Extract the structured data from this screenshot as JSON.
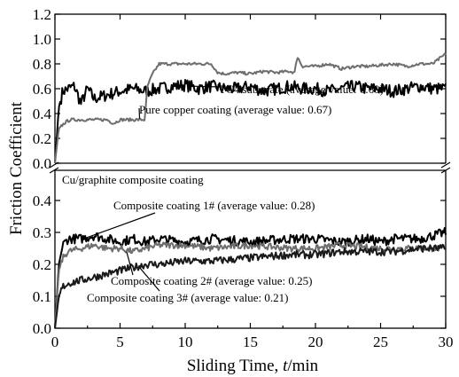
{
  "chart_data": {
    "type": "line",
    "xlabel": "Sliding Time, t/min",
    "xlabel_parts": {
      "prefix": "Sliding Time, ",
      "var": "t",
      "suffix": "/min"
    },
    "ylabel": "Friction Coefficient",
    "xlim": [
      0,
      30
    ],
    "x_ticks": [
      "0",
      "5",
      "10",
      "15",
      "20",
      "25",
      "30"
    ],
    "grid": false,
    "legend": "none",
    "panels": [
      {
        "name": "upper",
        "ylim": [
          0.0,
          1.2
        ],
        "y_ticks": [
          "0.0",
          "0.2",
          "0.4",
          "0.6",
          "0.8",
          "1.0",
          "1.2"
        ],
        "series": [
          {
            "name": "TC4 substrate (average value: 0.60)",
            "color": "#000000",
            "x": [
              0,
              0.3,
              0.6,
              1,
              1.5,
              2,
              2.5,
              3,
              4,
              5,
              6,
              7,
              8,
              9,
              10,
              11,
              12,
              13,
              14,
              15,
              16,
              17,
              18,
              19,
              20,
              21,
              22,
              23,
              24,
              25,
              26,
              27,
              28,
              29,
              30
            ],
            "y": [
              0.0,
              0.45,
              0.58,
              0.6,
              0.62,
              0.48,
              0.6,
              0.52,
              0.55,
              0.58,
              0.6,
              0.58,
              0.6,
              0.62,
              0.63,
              0.6,
              0.62,
              0.6,
              0.6,
              0.62,
              0.58,
              0.6,
              0.62,
              0.6,
              0.6,
              0.58,
              0.6,
              0.62,
              0.6,
              0.6,
              0.58,
              0.6,
              0.62,
              0.6,
              0.6
            ],
            "noise": 0.05
          },
          {
            "name": "Pure copper coating (average value: 0.67)",
            "color": "#6e6e6e",
            "x": [
              0,
              0.3,
              0.8,
              1.2,
              2,
              3,
              4,
              4.5,
              5,
              5.5,
              6,
              6.9,
              7.1,
              7.5,
              8,
              9,
              10,
              11,
              12,
              12.5,
              13,
              14,
              15,
              16,
              17,
              18,
              18.4,
              18.6,
              19,
              20,
              21,
              22,
              23,
              24,
              25,
              26,
              27,
              28,
              29,
              30
            ],
            "y": [
              0.0,
              0.28,
              0.33,
              0.35,
              0.35,
              0.35,
              0.35,
              0.32,
              0.35,
              0.35,
              0.35,
              0.35,
              0.62,
              0.72,
              0.8,
              0.8,
              0.8,
              0.8,
              0.8,
              0.73,
              0.72,
              0.73,
              0.72,
              0.74,
              0.73,
              0.74,
              0.73,
              0.86,
              0.78,
              0.78,
              0.8,
              0.76,
              0.78,
              0.78,
              0.79,
              0.8,
              0.78,
              0.8,
              0.8,
              0.88
            ],
            "noise": 0.012
          }
        ],
        "annotations": [
          {
            "text": "TC4 substrate (average value: 0.60)",
            "target": [
              10.5,
              0.62
            ]
          },
          {
            "text": "Pure copper coating (average value: 0.67)",
            "target": [
              6.5,
              0.36
            ]
          }
        ]
      },
      {
        "name": "lower",
        "ylim": [
          0.0,
          0.45
        ],
        "y_ticks": [
          "0.0",
          "0.1",
          "0.2",
          "0.3",
          "0.4"
        ],
        "title": "Cu/graphite composite coating",
        "series": [
          {
            "name": "Composite coating 1# (average value: 0.28)",
            "color": "#000000",
            "x": [
              0,
              0.3,
              0.6,
              1,
              2,
              3,
              4,
              5,
              6,
              7,
              8,
              10,
              12,
              15,
              18,
              20,
              22,
              24,
              25,
              26,
              27,
              28,
              29,
              30
            ],
            "y": [
              0.0,
              0.2,
              0.26,
              0.28,
              0.28,
              0.29,
              0.28,
              0.27,
              0.28,
              0.27,
              0.28,
              0.27,
              0.28,
              0.27,
              0.28,
              0.28,
              0.27,
              0.28,
              0.27,
              0.28,
              0.28,
              0.28,
              0.29,
              0.3
            ],
            "noise": 0.015
          },
          {
            "name": "Composite coating 2# (average value: 0.25)",
            "color": "#6e6e6e",
            "x": [
              0,
              0.3,
              0.6,
              1,
              2,
              3,
              4,
              5,
              6,
              7,
              8,
              10,
              12,
              15,
              18,
              20,
              22,
              25,
              28,
              30
            ],
            "y": [
              0.0,
              0.18,
              0.22,
              0.24,
              0.25,
              0.26,
              0.25,
              0.25,
              0.24,
              0.25,
              0.26,
              0.26,
              0.25,
              0.26,
              0.25,
              0.25,
              0.26,
              0.25,
              0.25,
              0.25
            ],
            "noise": 0.01
          },
          {
            "name": "Composite coating 3# (average value: 0.21)",
            "color": "#1a1a1a",
            "x": [
              0,
              0.3,
              0.6,
              1,
              2,
              3,
              4,
              5,
              6,
              7,
              8,
              10,
              12,
              15,
              18,
              20,
              22,
              24,
              26,
              28,
              30
            ],
            "y": [
              0.0,
              0.1,
              0.13,
              0.14,
              0.15,
              0.16,
              0.17,
              0.18,
              0.19,
              0.2,
              0.2,
              0.21,
              0.21,
              0.22,
              0.23,
              0.23,
              0.24,
              0.24,
              0.24,
              0.25,
              0.25
            ],
            "noise": 0.012
          }
        ],
        "annotations": [
          {
            "text": "Composite coating 1# (average value: 0.28)",
            "target": [
              2.2,
              0.28
            ]
          },
          {
            "text": "Composite coating 2# (average value: 0.25)",
            "target": [
              5.5,
              0.24
            ]
          },
          {
            "text": "Composite coating 3# (average value: 0.21)",
            "target": [
              6.5,
              0.19
            ]
          }
        ]
      }
    ]
  }
}
